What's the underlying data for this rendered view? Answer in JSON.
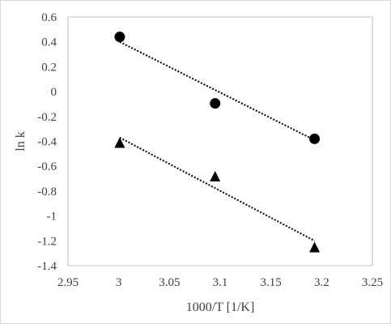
{
  "chart_data": {
    "type": "scatter",
    "title": "",
    "xlabel": "1000/T [1/K]",
    "ylabel": "ln k",
    "xlim": [
      2.95,
      3.25
    ],
    "ylim": [
      -1.4,
      0.6
    ],
    "xticks": [
      2.95,
      3.0,
      3.05,
      3.1,
      3.15,
      3.2,
      3.25
    ],
    "yticks": [
      -1.4,
      -1.2,
      -1.0,
      -0.8,
      -0.6,
      -0.4,
      -0.2,
      0,
      0.2,
      0.4,
      0.6
    ],
    "xtick_labels": [
      "2.95",
      "3",
      "3.05",
      "3.1",
      "3.15",
      "3.2",
      "3.25"
    ],
    "ytick_labels": [
      "-1.4",
      "-1.2",
      "-1",
      "-0.8",
      "-0.6",
      "-0.4",
      "-0.2",
      "0",
      "0.2",
      "0.4",
      "0.6"
    ],
    "grid": false,
    "legend": "none",
    "series": [
      {
        "marker": "circle",
        "color": "#000000",
        "x": [
          3.001,
          3.095,
          3.193
        ],
        "y": [
          0.44,
          -0.095,
          -0.38
        ],
        "trendline": {
          "type": "linear",
          "style": "dotted",
          "x": [
            3.001,
            3.193
          ],
          "y": [
            0.4,
            -0.39
          ]
        }
      },
      {
        "marker": "triangle",
        "color": "#000000",
        "x": [
          3.001,
          3.095,
          3.193
        ],
        "y": [
          -0.41,
          -0.68,
          -1.25
        ],
        "trendline": {
          "type": "linear",
          "style": "dotted",
          "x": [
            3.001,
            3.193
          ],
          "y": [
            -0.37,
            -1.2
          ]
        }
      }
    ]
  }
}
